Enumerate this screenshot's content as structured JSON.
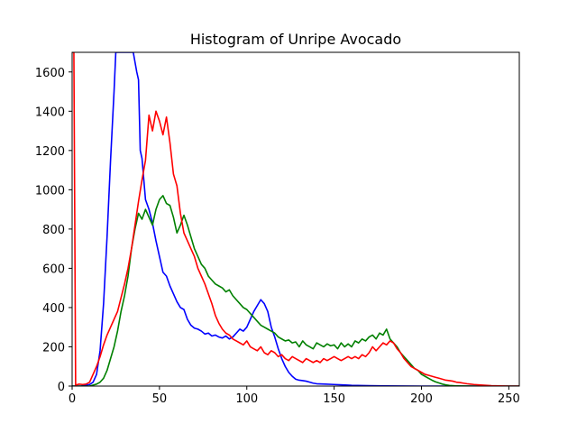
{
  "chart_data": {
    "type": "line",
    "title": "Histogram of Unripe Avocado",
    "xlabel": "",
    "ylabel": "",
    "xlim": [
      0,
      256
    ],
    "ylim": [
      0,
      1700
    ],
    "grid": false,
    "x_ticks": [
      0,
      50,
      100,
      150,
      200,
      250
    ],
    "x_tick_labels": [
      "0",
      "50",
      "100",
      "150",
      "200",
      "250"
    ],
    "y_ticks": [
      0,
      200,
      400,
      600,
      800,
      1000,
      1200,
      1400,
      1600
    ],
    "y_tick_labels": [
      "0",
      "200",
      "400",
      "600",
      "800",
      "1000",
      "1200",
      "1400",
      "1600"
    ],
    "series": [
      {
        "name": "blue",
        "color": "#0000ff",
        "points": [
          [
            0,
            0
          ],
          [
            5,
            0
          ],
          [
            10,
            8
          ],
          [
            12,
            20
          ],
          [
            14,
            60
          ],
          [
            16,
            180
          ],
          [
            18,
            420
          ],
          [
            20,
            760
          ],
          [
            22,
            1150
          ],
          [
            24,
            1500
          ],
          [
            25,
            1700
          ],
          [
            26,
            1700
          ],
          [
            30,
            1700
          ],
          [
            33,
            1700
          ],
          [
            35,
            1700
          ],
          [
            37,
            1600
          ],
          [
            38,
            1560
          ],
          [
            39,
            1200
          ],
          [
            40,
            1160
          ],
          [
            42,
            950
          ],
          [
            44,
            900
          ],
          [
            46,
            830
          ],
          [
            48,
            740
          ],
          [
            50,
            660
          ],
          [
            52,
            580
          ],
          [
            54,
            560
          ],
          [
            56,
            510
          ],
          [
            58,
            470
          ],
          [
            60,
            430
          ],
          [
            62,
            400
          ],
          [
            64,
            390
          ],
          [
            66,
            340
          ],
          [
            68,
            310
          ],
          [
            70,
            295
          ],
          [
            72,
            290
          ],
          [
            74,
            280
          ],
          [
            76,
            265
          ],
          [
            78,
            270
          ],
          [
            80,
            255
          ],
          [
            82,
            260
          ],
          [
            84,
            250
          ],
          [
            86,
            245
          ],
          [
            88,
            255
          ],
          [
            90,
            240
          ],
          [
            92,
            250
          ],
          [
            94,
            270
          ],
          [
            96,
            290
          ],
          [
            98,
            280
          ],
          [
            100,
            300
          ],
          [
            102,
            340
          ],
          [
            104,
            380
          ],
          [
            106,
            410
          ],
          [
            108,
            440
          ],
          [
            110,
            420
          ],
          [
            112,
            380
          ],
          [
            114,
            300
          ],
          [
            116,
            250
          ],
          [
            118,
            190
          ],
          [
            120,
            140
          ],
          [
            122,
            100
          ],
          [
            124,
            70
          ],
          [
            126,
            50
          ],
          [
            128,
            35
          ],
          [
            130,
            30
          ],
          [
            132,
            28
          ],
          [
            134,
            25
          ],
          [
            136,
            20
          ],
          [
            138,
            15
          ],
          [
            140,
            12
          ],
          [
            145,
            10
          ],
          [
            150,
            8
          ],
          [
            155,
            6
          ],
          [
            160,
            4
          ],
          [
            170,
            2
          ],
          [
            180,
            1
          ],
          [
            200,
            0
          ],
          [
            256,
            0
          ]
        ]
      },
      {
        "name": "green",
        "color": "#008000",
        "points": [
          [
            0,
            0
          ],
          [
            10,
            0
          ],
          [
            12,
            5
          ],
          [
            14,
            10
          ],
          [
            16,
            20
          ],
          [
            18,
            40
          ],
          [
            20,
            80
          ],
          [
            22,
            140
          ],
          [
            24,
            200
          ],
          [
            26,
            280
          ],
          [
            28,
            380
          ],
          [
            30,
            460
          ],
          [
            32,
            560
          ],
          [
            34,
            700
          ],
          [
            36,
            800
          ],
          [
            38,
            880
          ],
          [
            40,
            850
          ],
          [
            42,
            900
          ],
          [
            44,
            860
          ],
          [
            46,
            820
          ],
          [
            48,
            900
          ],
          [
            50,
            950
          ],
          [
            52,
            970
          ],
          [
            54,
            930
          ],
          [
            56,
            920
          ],
          [
            58,
            860
          ],
          [
            60,
            780
          ],
          [
            62,
            820
          ],
          [
            64,
            870
          ],
          [
            66,
            820
          ],
          [
            68,
            760
          ],
          [
            70,
            700
          ],
          [
            72,
            660
          ],
          [
            74,
            620
          ],
          [
            76,
            600
          ],
          [
            78,
            560
          ],
          [
            80,
            540
          ],
          [
            82,
            520
          ],
          [
            84,
            510
          ],
          [
            86,
            500
          ],
          [
            88,
            480
          ],
          [
            90,
            490
          ],
          [
            92,
            460
          ],
          [
            94,
            440
          ],
          [
            96,
            420
          ],
          [
            98,
            400
          ],
          [
            100,
            390
          ],
          [
            102,
            370
          ],
          [
            104,
            350
          ],
          [
            106,
            330
          ],
          [
            108,
            310
          ],
          [
            110,
            300
          ],
          [
            112,
            290
          ],
          [
            114,
            280
          ],
          [
            116,
            270
          ],
          [
            118,
            250
          ],
          [
            120,
            240
          ],
          [
            122,
            230
          ],
          [
            124,
            235
          ],
          [
            126,
            220
          ],
          [
            128,
            225
          ],
          [
            130,
            200
          ],
          [
            132,
            230
          ],
          [
            134,
            210
          ],
          [
            136,
            200
          ],
          [
            138,
            190
          ],
          [
            140,
            220
          ],
          [
            142,
            210
          ],
          [
            144,
            200
          ],
          [
            146,
            215
          ],
          [
            148,
            205
          ],
          [
            150,
            210
          ],
          [
            152,
            190
          ],
          [
            154,
            220
          ],
          [
            156,
            200
          ],
          [
            158,
            215
          ],
          [
            160,
            200
          ],
          [
            162,
            230
          ],
          [
            164,
            220
          ],
          [
            166,
            240
          ],
          [
            168,
            230
          ],
          [
            170,
            250
          ],
          [
            172,
            260
          ],
          [
            174,
            240
          ],
          [
            176,
            270
          ],
          [
            178,
            260
          ],
          [
            180,
            290
          ],
          [
            182,
            240
          ],
          [
            184,
            220
          ],
          [
            186,
            200
          ],
          [
            188,
            170
          ],
          [
            190,
            150
          ],
          [
            192,
            130
          ],
          [
            194,
            110
          ],
          [
            196,
            90
          ],
          [
            198,
            80
          ],
          [
            200,
            60
          ],
          [
            202,
            50
          ],
          [
            204,
            40
          ],
          [
            206,
            30
          ],
          [
            208,
            22
          ],
          [
            210,
            16
          ],
          [
            212,
            10
          ],
          [
            214,
            6
          ],
          [
            216,
            3
          ],
          [
            220,
            1
          ],
          [
            230,
            0
          ],
          [
            256,
            0
          ]
        ]
      },
      {
        "name": "red",
        "color": "#ff0000",
        "points": [
          [
            0,
            1700
          ],
          [
            1,
            1700
          ],
          [
            2,
            5
          ],
          [
            4,
            10
          ],
          [
            6,
            8
          ],
          [
            8,
            10
          ],
          [
            10,
            20
          ],
          [
            12,
            60
          ],
          [
            14,
            100
          ],
          [
            16,
            150
          ],
          [
            18,
            210
          ],
          [
            20,
            260
          ],
          [
            22,
            300
          ],
          [
            24,
            340
          ],
          [
            26,
            380
          ],
          [
            28,
            450
          ],
          [
            30,
            520
          ],
          [
            32,
            600
          ],
          [
            34,
            700
          ],
          [
            36,
            820
          ],
          [
            38,
            940
          ],
          [
            40,
            1050
          ],
          [
            42,
            1150
          ],
          [
            44,
            1380
          ],
          [
            46,
            1300
          ],
          [
            48,
            1400
          ],
          [
            50,
            1350
          ],
          [
            52,
            1280
          ],
          [
            54,
            1370
          ],
          [
            56,
            1240
          ],
          [
            58,
            1080
          ],
          [
            60,
            1020
          ],
          [
            62,
            880
          ],
          [
            64,
            780
          ],
          [
            66,
            740
          ],
          [
            68,
            700
          ],
          [
            70,
            660
          ],
          [
            72,
            600
          ],
          [
            74,
            560
          ],
          [
            76,
            520
          ],
          [
            78,
            470
          ],
          [
            80,
            420
          ],
          [
            82,
            360
          ],
          [
            84,
            320
          ],
          [
            86,
            290
          ],
          [
            88,
            270
          ],
          [
            90,
            260
          ],
          [
            92,
            240
          ],
          [
            94,
            230
          ],
          [
            96,
            220
          ],
          [
            98,
            210
          ],
          [
            100,
            230
          ],
          [
            102,
            200
          ],
          [
            104,
            190
          ],
          [
            106,
            180
          ],
          [
            108,
            200
          ],
          [
            110,
            170
          ],
          [
            112,
            160
          ],
          [
            114,
            180
          ],
          [
            116,
            170
          ],
          [
            118,
            150
          ],
          [
            120,
            160
          ],
          [
            122,
            140
          ],
          [
            124,
            130
          ],
          [
            126,
            150
          ],
          [
            128,
            140
          ],
          [
            130,
            130
          ],
          [
            132,
            120
          ],
          [
            134,
            140
          ],
          [
            136,
            130
          ],
          [
            138,
            120
          ],
          [
            140,
            130
          ],
          [
            142,
            120
          ],
          [
            144,
            140
          ],
          [
            146,
            130
          ],
          [
            148,
            140
          ],
          [
            150,
            150
          ],
          [
            152,
            140
          ],
          [
            154,
            130
          ],
          [
            156,
            140
          ],
          [
            158,
            150
          ],
          [
            160,
            140
          ],
          [
            162,
            150
          ],
          [
            164,
            140
          ],
          [
            166,
            160
          ],
          [
            168,
            150
          ],
          [
            170,
            170
          ],
          [
            172,
            200
          ],
          [
            174,
            180
          ],
          [
            176,
            200
          ],
          [
            178,
            220
          ],
          [
            180,
            210
          ],
          [
            182,
            230
          ],
          [
            184,
            220
          ],
          [
            186,
            190
          ],
          [
            188,
            170
          ],
          [
            190,
            140
          ],
          [
            192,
            120
          ],
          [
            194,
            100
          ],
          [
            196,
            90
          ],
          [
            198,
            80
          ],
          [
            200,
            70
          ],
          [
            202,
            60
          ],
          [
            204,
            55
          ],
          [
            206,
            50
          ],
          [
            208,
            45
          ],
          [
            210,
            40
          ],
          [
            212,
            35
          ],
          [
            214,
            30
          ],
          [
            216,
            28
          ],
          [
            218,
            25
          ],
          [
            220,
            20
          ],
          [
            222,
            18
          ],
          [
            224,
            15
          ],
          [
            226,
            12
          ],
          [
            228,
            10
          ],
          [
            230,
            8
          ],
          [
            235,
            5
          ],
          [
            240,
            2
          ],
          [
            245,
            1
          ],
          [
            250,
            0
          ],
          [
            256,
            0
          ]
        ]
      }
    ]
  }
}
